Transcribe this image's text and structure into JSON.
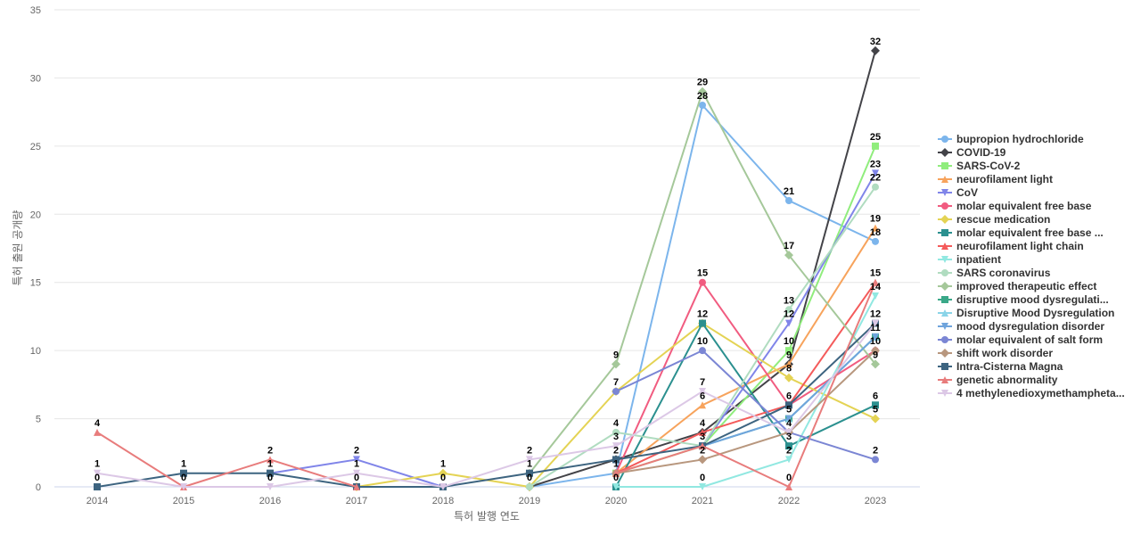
{
  "chart_data": {
    "type": "line",
    "title": "",
    "xlabel": "특허 발행 연도",
    "ylabel": "특허 출원 공개량",
    "ylim": [
      0,
      35
    ],
    "yticks": [
      0,
      5,
      10,
      15,
      20,
      25,
      30,
      35
    ],
    "grid": true,
    "legend_position": "right",
    "x": [
      2014,
      2015,
      2016,
      2017,
      2018,
      2019,
      2020,
      2021,
      2022,
      2023
    ],
    "series": [
      {
        "name": "bupropion hydrochloride",
        "color": "#7cb5ec",
        "marker": "circle",
        "values": [
          null,
          null,
          null,
          null,
          null,
          0,
          1,
          28,
          21,
          18
        ]
      },
      {
        "name": "COVID-19",
        "color": "#434348",
        "marker": "diamond",
        "values": [
          null,
          null,
          null,
          null,
          null,
          0,
          2,
          4,
          9,
          32
        ]
      },
      {
        "name": "SARS-CoV-2",
        "color": "#90ed7d",
        "marker": "square",
        "values": [
          null,
          null,
          null,
          null,
          null,
          null,
          1,
          3,
          10,
          25
        ]
      },
      {
        "name": "neurofilament light",
        "color": "#f7a35c",
        "marker": "triangle",
        "values": [
          null,
          null,
          null,
          null,
          null,
          null,
          1,
          6,
          9,
          19
        ]
      },
      {
        "name": "CoV",
        "color": "#8085e9",
        "marker": "triangle-down",
        "values": [
          null,
          null,
          1,
          2,
          0,
          null,
          null,
          3,
          12,
          23
        ]
      },
      {
        "name": "molar equivalent free base",
        "color": "#f15c80",
        "marker": "circle",
        "values": [
          null,
          null,
          null,
          null,
          null,
          null,
          1,
          15,
          6,
          10
        ]
      },
      {
        "name": "rescue medication",
        "color": "#e4d354",
        "marker": "diamond",
        "values": [
          null,
          null,
          null,
          0,
          1,
          0,
          7,
          12,
          8,
          5
        ]
      },
      {
        "name": "molar equivalent free base ...",
        "color": "#2b908f",
        "marker": "square",
        "values": [
          null,
          null,
          null,
          null,
          null,
          null,
          0,
          12,
          3,
          6
        ]
      },
      {
        "name": "neurofilament light chain",
        "color": "#f45b5b",
        "marker": "triangle",
        "values": [
          null,
          null,
          null,
          null,
          null,
          null,
          1,
          4,
          6,
          15
        ]
      },
      {
        "name": "inpatient",
        "color": "#91e8e1",
        "marker": "triangle-down",
        "values": [
          null,
          null,
          null,
          null,
          null,
          null,
          0,
          0,
          2,
          14
        ]
      },
      {
        "name": "SARS coronavirus",
        "color": "#b0dcc0",
        "marker": "circle",
        "values": [
          null,
          null,
          null,
          null,
          null,
          0,
          4,
          3,
          13,
          22
        ]
      },
      {
        "name": "improved therapeutic effect",
        "color": "#a5c89a",
        "marker": "diamond",
        "values": [
          null,
          null,
          null,
          null,
          null,
          1,
          9,
          29,
          17,
          9
        ]
      },
      {
        "name": "disruptive mood dysregulati...",
        "color": "#3aa888",
        "marker": "square",
        "values": [
          null,
          null,
          null,
          null,
          null,
          null,
          null,
          3,
          5,
          11
        ]
      },
      {
        "name": "Disruptive Mood Dysregulation",
        "color": "#8ad4e8",
        "marker": "triangle",
        "values": [
          null,
          null,
          null,
          null,
          null,
          null,
          null,
          3,
          5,
          11
        ]
      },
      {
        "name": "mood dysregulation disorder",
        "color": "#6fa4dc",
        "marker": "triangle-down",
        "values": [
          null,
          null,
          null,
          null,
          null,
          null,
          null,
          3,
          5,
          11
        ]
      },
      {
        "name": "molar equivalent of salt form",
        "color": "#7b86d4",
        "marker": "circle",
        "values": [
          null,
          null,
          null,
          null,
          null,
          null,
          7,
          10,
          4,
          2
        ]
      },
      {
        "name": "shift work disorder",
        "color": "#b8977e",
        "marker": "diamond",
        "values": [
          null,
          null,
          null,
          null,
          null,
          null,
          1,
          2,
          4,
          10
        ]
      },
      {
        "name": "Intra-Cisterna Magna",
        "color": "#3d6480",
        "marker": "square",
        "values": [
          0,
          1,
          1,
          0,
          0,
          1,
          2,
          3,
          6,
          12
        ]
      },
      {
        "name": "genetic abnormality",
        "color": "#e87c7c",
        "marker": "triangle",
        "values": [
          4,
          0,
          2,
          0,
          null,
          null,
          1,
          3,
          0,
          15
        ]
      },
      {
        "name": "4 methylenedioxymethampheta...",
        "color": "#dcc8e6",
        "marker": "triangle-down",
        "values": [
          1,
          0,
          0,
          1,
          0,
          2,
          3,
          7,
          4,
          12
        ]
      }
    ]
  }
}
